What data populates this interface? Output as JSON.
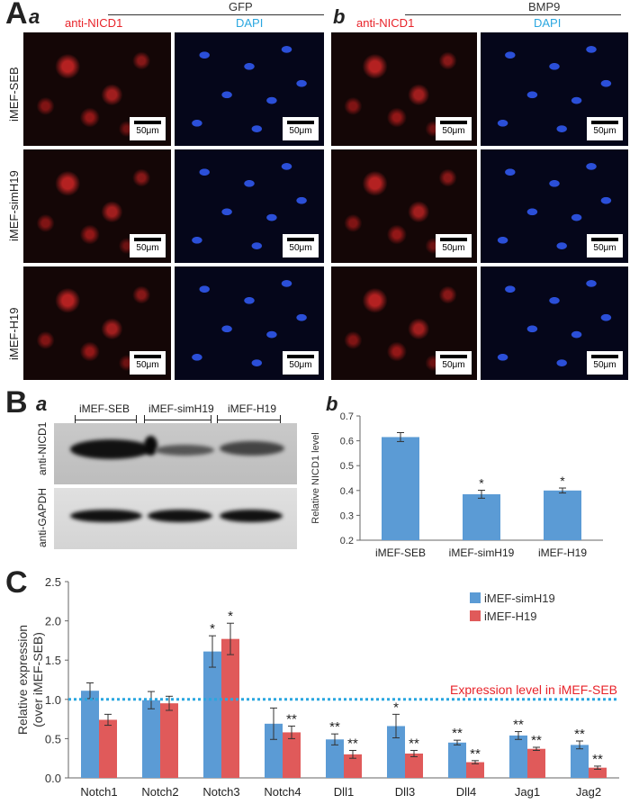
{
  "panelA": {
    "label": "A",
    "sub_a": "a",
    "sub_b": "b",
    "group_a": "GFP",
    "group_b": "BMP9",
    "stain_red": "anti-NICD1",
    "stain_blue": "DAPI",
    "rows": [
      "iMEF-SEB",
      "iMEF-simH19",
      "iMEF-H19"
    ],
    "scale": "50μm"
  },
  "panelB": {
    "label": "B",
    "sub_a": "a",
    "sub_b": "b",
    "lanes": [
      "iMEF-SEB",
      "iMEF-simH19",
      "iMEF-H19"
    ],
    "blot_top_label": "anti-NICD1",
    "blot_bottom_label": "anti-GAPDH"
  },
  "chart_data": [
    {
      "type": "bar",
      "ylabel": "Relative NICD1 level",
      "categories": [
        "iMEF-SEB",
        "iMEF-simH19",
        "iMEF-H19"
      ],
      "values": [
        0.615,
        0.385,
        0.4
      ],
      "errors": [
        0.018,
        0.016,
        0.01
      ],
      "annotations": [
        "",
        "*",
        "*"
      ],
      "ylim": [
        0.2,
        0.7
      ],
      "yticks": [
        "0.2",
        "0.3",
        "0.4",
        "0.5",
        "0.6",
        "0.7"
      ],
      "color": "#5b9bd5"
    },
    {
      "type": "bar",
      "label": "C",
      "ylabel_line1": "Relative expression",
      "ylabel_line2": "(over iMEF-SEB)",
      "categories": [
        "Notch1",
        "Notch2",
        "Notch3",
        "Notch4",
        "Dll1",
        "Dll3",
        "Dll4",
        "Jag1",
        "Jag2"
      ],
      "series": [
        {
          "name": "iMEF-simH19",
          "color": "#5b9bd5",
          "values": [
            1.11,
            0.99,
            1.61,
            0.69,
            0.49,
            0.66,
            0.45,
            0.54,
            0.42
          ],
          "errors": [
            0.1,
            0.11,
            0.2,
            0.2,
            0.07,
            0.15,
            0.03,
            0.05,
            0.05
          ],
          "annotations": [
            "",
            "",
            "*",
            "",
            "**",
            "*",
            "**",
            "**",
            "**"
          ]
        },
        {
          "name": "iMEF-H19",
          "color": "#e05a5a",
          "values": [
            0.74,
            0.95,
            1.77,
            0.58,
            0.3,
            0.31,
            0.2,
            0.37,
            0.13
          ],
          "errors": [
            0.07,
            0.09,
            0.2,
            0.08,
            0.05,
            0.04,
            0.02,
            0.02,
            0.02
          ],
          "annotations": [
            "",
            "",
            "*",
            "**",
            "**",
            "**",
            "**",
            "**",
            "**"
          ]
        }
      ],
      "reference_line": {
        "value": 1.0,
        "label": "Expression level in iMEF-SEB",
        "color": "#2aa7e0",
        "label_color": "#e8232a"
      },
      "ylim": [
        0,
        2.5
      ],
      "yticks": [
        "0.0",
        "0.5",
        "1.0",
        "1.5",
        "2.0",
        "2.5"
      ],
      "legend_placement": "top-right"
    }
  ]
}
